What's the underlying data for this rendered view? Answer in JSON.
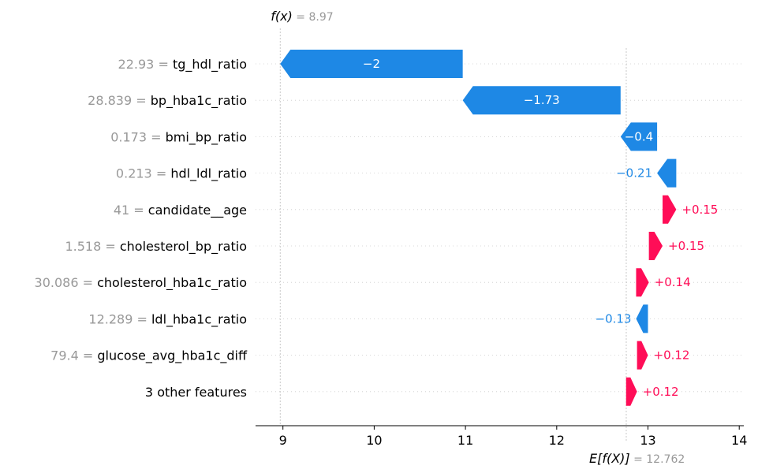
{
  "chart_data": {
    "type": "waterfall",
    "fx_label": "f(x)",
    "fx_value": "= 8.97",
    "ex_label": "E[f(X)]",
    "ex_value": "= 12.762",
    "base_value": 12.762,
    "final_value": 8.97,
    "xlim": [
      8.7,
      14.05
    ],
    "xticks": [
      9,
      10,
      11,
      12,
      13,
      14
    ],
    "colors": {
      "positive": "#ff0d57",
      "negative": "#1e88e5",
      "value_text": "#999999"
    },
    "features": [
      {
        "value": "22.93",
        "name": "tg_hdl_ratio",
        "contribution": -2.0,
        "label": "−2"
      },
      {
        "value": "28.839",
        "name": "bp_hba1c_ratio",
        "contribution": -1.73,
        "label": "−1.73"
      },
      {
        "value": "0.173",
        "name": "bmi_bp_ratio",
        "contribution": -0.4,
        "label": "−0.4"
      },
      {
        "value": "0.213",
        "name": "hdl_ldl_ratio",
        "contribution": -0.21,
        "label": "−0.21"
      },
      {
        "value": "41",
        "name": "candidate__age",
        "contribution": 0.15,
        "label": "+0.15"
      },
      {
        "value": "1.518",
        "name": "cholesterol_bp_ratio",
        "contribution": 0.15,
        "label": "+0.15"
      },
      {
        "value": "30.086",
        "name": "cholesterol_hba1c_ratio",
        "contribution": 0.14,
        "label": "+0.14"
      },
      {
        "value": "12.289",
        "name": "ldl_hba1c_ratio",
        "contribution": -0.13,
        "label": "−0.13"
      },
      {
        "value": "79.4",
        "name": "glucose_avg_hba1c_diff",
        "contribution": 0.12,
        "label": "+0.12"
      },
      {
        "value": "",
        "name": "3 other features",
        "contribution": 0.12,
        "label": "+0.12"
      }
    ]
  }
}
